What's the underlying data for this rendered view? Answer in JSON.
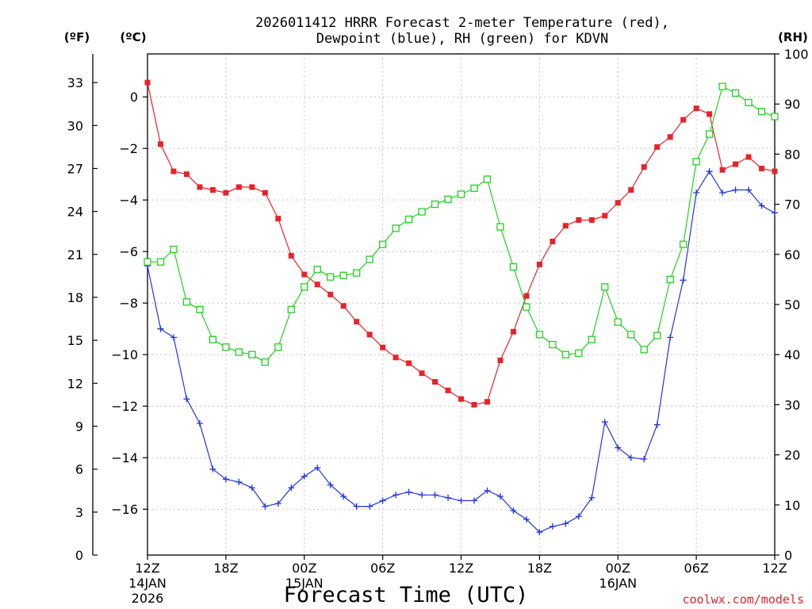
{
  "chart_data": {
    "type": "line",
    "title_line1": "2026011412 HRRR Forecast 2-meter Temperature (red),",
    "title_line2": "Dewpoint (blue), RH (green) for KDVN",
    "xlabel": "Forecast Time (UTC)",
    "watermark": "coolwx.com/models",
    "left_f_unit": "(ºF)",
    "left_c_unit": "(ºC)",
    "right_unit": "(RH)",
    "x_range_hours": [
      0,
      48
    ],
    "f_axis": {
      "ylim": [
        0,
        35
      ],
      "ticks": [
        0,
        3,
        6,
        9,
        12,
        15,
        18,
        21,
        24,
        27,
        30,
        33
      ]
    },
    "c_axis": {
      "ticks": [
        0,
        -2,
        -4,
        -6,
        -8,
        -10,
        -12,
        -14,
        -16
      ]
    },
    "rh_axis": {
      "ylim": [
        0,
        100
      ],
      "ticks": [
        0,
        10,
        20,
        30,
        40,
        50,
        60,
        70,
        80,
        90,
        100
      ]
    },
    "x_ticks": [
      {
        "hour": 0,
        "label": "12Z",
        "sub1": "14JAN",
        "sub2": "2026"
      },
      {
        "hour": 6,
        "label": "18Z",
        "sub1": "",
        "sub2": ""
      },
      {
        "hour": 12,
        "label": "00Z",
        "sub1": "15JAN",
        "sub2": ""
      },
      {
        "hour": 18,
        "label": "06Z",
        "sub1": "",
        "sub2": ""
      },
      {
        "hour": 24,
        "label": "12Z",
        "sub1": "",
        "sub2": ""
      },
      {
        "hour": 30,
        "label": "18Z",
        "sub1": "",
        "sub2": ""
      },
      {
        "hour": 36,
        "label": "00Z",
        "sub1": "16JAN",
        "sub2": ""
      },
      {
        "hour": 42,
        "label": "06Z",
        "sub1": "",
        "sub2": ""
      },
      {
        "hour": 48,
        "label": "12Z",
        "sub1": "",
        "sub2": ""
      }
    ],
    "series": [
      {
        "name": "2-meter Temperature",
        "units": "F",
        "color": "#e8222a",
        "marker": "filled-square",
        "values": [
          33.0,
          28.7,
          26.8,
          26.6,
          25.7,
          25.5,
          25.3,
          25.7,
          25.7,
          25.3,
          23.5,
          20.9,
          19.6,
          18.9,
          18.2,
          17.4,
          16.3,
          15.4,
          14.5,
          13.8,
          13.4,
          12.7,
          12.1,
          11.5,
          10.9,
          10.5,
          10.7,
          13.6,
          15.6,
          18.1,
          20.3,
          21.9,
          23.0,
          23.4,
          23.4,
          23.7,
          24.6,
          25.5,
          27.1,
          28.5,
          29.2,
          30.4,
          31.2,
          30.8,
          26.9,
          27.3,
          27.8,
          27.0,
          26.8
        ]
      },
      {
        "name": "Dewpoint",
        "units": "F",
        "color": "#2134e0",
        "marker": "plus",
        "values": [
          20.2,
          15.8,
          15.2,
          10.9,
          9.2,
          6.0,
          5.3,
          5.1,
          4.7,
          3.4,
          3.6,
          4.7,
          5.5,
          6.1,
          4.9,
          4.1,
          3.4,
          3.4,
          3.8,
          4.2,
          4.4,
          4.2,
          4.2,
          4.0,
          3.8,
          3.8,
          4.5,
          4.1,
          3.1,
          2.5,
          1.6,
          2.0,
          2.2,
          2.7,
          4.0,
          9.3,
          7.5,
          6.8,
          6.7,
          9.1,
          15.2,
          19.2,
          25.3,
          26.8,
          25.3,
          25.5,
          25.5,
          24.4,
          23.9
        ]
      },
      {
        "name": "Relative Humidity",
        "units": "%",
        "color": "#1fd21f",
        "marker": "open-square",
        "values": [
          58.5,
          58.5,
          61.0,
          50.5,
          49.0,
          43.0,
          41.5,
          40.5,
          40.0,
          38.5,
          41.5,
          49.0,
          53.5,
          57.0,
          55.5,
          55.8,
          56.3,
          59.0,
          62.0,
          65.2,
          67.0,
          68.5,
          70.0,
          71.0,
          72.0,
          73.2,
          75.0,
          65.5,
          57.5,
          49.5,
          44.0,
          42.0,
          40.0,
          40.3,
          43.0,
          53.5,
          46.5,
          44.0,
          41.0,
          43.8,
          55.0,
          62.0,
          78.5,
          84.0,
          93.5,
          92.2,
          90.3,
          88.5,
          87.5
        ]
      }
    ]
  }
}
